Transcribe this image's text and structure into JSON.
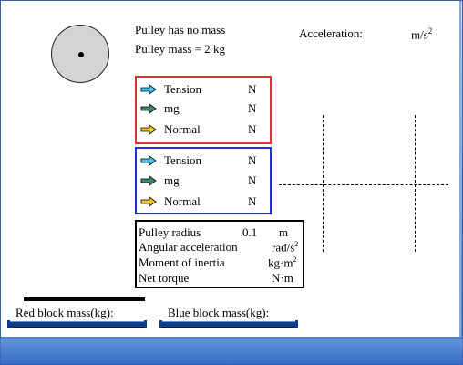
{
  "header": {
    "pulley_note_1": "Pulley has no mass",
    "pulley_note_2": "Pulley mass = 2 kg",
    "acceleration_label": "Acceleration:",
    "acceleration_unit": "m/s",
    "acceleration_exp": "2"
  },
  "red_forces": [
    {
      "label": "Tension",
      "unit": "N",
      "icon": "cyan-arrow-icon",
      "color": "#39c6f0"
    },
    {
      "label": "mg",
      "unit": "N",
      "icon": "green-arrow-icon",
      "color": "#3a8a6a"
    },
    {
      "label": "Normal",
      "unit": "N",
      "icon": "yellow-arrow-icon",
      "color": "#f5c518"
    }
  ],
  "blue_forces": [
    {
      "label": "Tension",
      "unit": "N",
      "icon": "cyan-arrow-icon",
      "color": "#39c6f0"
    },
    {
      "label": "mg",
      "unit": "N",
      "icon": "green-arrow-icon",
      "color": "#3a8a6a"
    },
    {
      "label": "Normal",
      "unit": "N",
      "icon": "yellow-arrow-icon",
      "color": "#f5c518"
    }
  ],
  "pulley_props": {
    "radius_label": "Pulley radius",
    "radius_value": "0.1",
    "radius_unit": "m",
    "angacc_label": "Angular acceleration",
    "angacc_unit": "rad/s",
    "angacc_exp": "2",
    "moi_label": "Moment of inertia",
    "moi_unit": "kg·m",
    "moi_exp": "2",
    "torque_label": "Net torque",
    "torque_unit": "N·m"
  },
  "controls": {
    "red_mass_label": "Red block mass(kg):",
    "blue_mass_label": "Blue block mass(kg):"
  },
  "colors": {
    "red_box": "#e53030",
    "blue_box": "#2030d8"
  }
}
